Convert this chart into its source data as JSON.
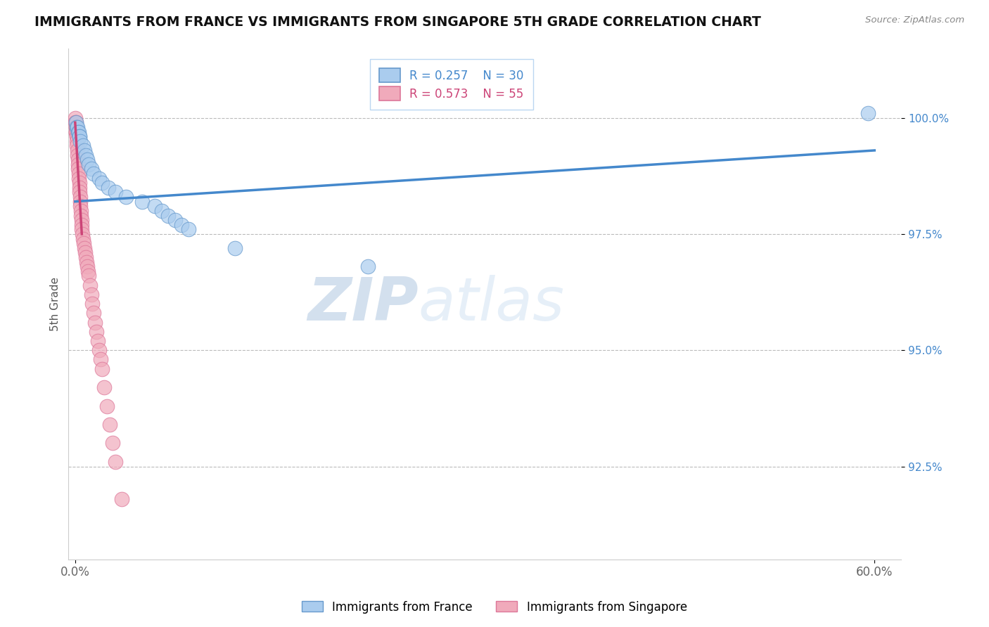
{
  "title": "IMMIGRANTS FROM FRANCE VS IMMIGRANTS FROM SINGAPORE 5TH GRADE CORRELATION CHART",
  "source_text": "Source: ZipAtlas.com",
  "xlabel_france": "Immigrants from France",
  "xlabel_singapore": "Immigrants from Singapore",
  "ylabel": "5th Grade",
  "xlim_min": -0.005,
  "xlim_max": 0.62,
  "ylim_min": 0.905,
  "ylim_max": 1.015,
  "ytick_vals": [
    0.925,
    0.95,
    0.975,
    1.0
  ],
  "ytick_labels": [
    "92.5%",
    "95.0%",
    "97.5%",
    "100.0%"
  ],
  "xtick_vals": [
    0.0,
    0.6
  ],
  "xtick_labels": [
    "0.0%",
    "60.0%"
  ],
  "france_fill": "#aaccee",
  "france_edge": "#6699cc",
  "singapore_fill": "#f0aabb",
  "singapore_edge": "#dd7799",
  "line_france_color": "#4488cc",
  "line_singapore_color": "#cc4477",
  "R_france": 0.257,
  "N_france": 30,
  "R_singapore": 0.573,
  "N_singapore": 55,
  "watermark_zip": "ZIP",
  "watermark_atlas": "atlas",
  "watermark_color_zip": "#b8cce4",
  "watermark_color_atlas": "#c8d8e8",
  "france_x": [
    0.0008,
    0.001,
    0.0015,
    0.002,
    0.0025,
    0.003,
    0.0035,
    0.004,
    0.006,
    0.007,
    0.008,
    0.009,
    0.01,
    0.012,
    0.014,
    0.018,
    0.02,
    0.025,
    0.03,
    0.038,
    0.05,
    0.06,
    0.065,
    0.07,
    0.075,
    0.08,
    0.085,
    0.12,
    0.22,
    0.595
  ],
  "france_y": [
    0.999,
    0.998,
    0.998,
    0.997,
    0.997,
    0.996,
    0.996,
    0.995,
    0.994,
    0.993,
    0.992,
    0.991,
    0.99,
    0.989,
    0.988,
    0.987,
    0.986,
    0.985,
    0.984,
    0.983,
    0.982,
    0.981,
    0.98,
    0.979,
    0.978,
    0.977,
    0.976,
    0.972,
    0.968,
    1.001
  ],
  "singapore_x": [
    0.0002,
    0.0003,
    0.0004,
    0.0005,
    0.0006,
    0.0007,
    0.0008,
    0.0009,
    0.001,
    0.0012,
    0.0014,
    0.0016,
    0.0018,
    0.002,
    0.0022,
    0.0024,
    0.0026,
    0.0028,
    0.003,
    0.0032,
    0.0034,
    0.0036,
    0.0038,
    0.004,
    0.0042,
    0.0044,
    0.0046,
    0.0048,
    0.005,
    0.0055,
    0.006,
    0.0065,
    0.007,
    0.0075,
    0.008,
    0.0085,
    0.009,
    0.0095,
    0.01,
    0.011,
    0.012,
    0.013,
    0.014,
    0.015,
    0.016,
    0.017,
    0.018,
    0.019,
    0.02,
    0.022,
    0.024,
    0.026,
    0.028,
    0.03,
    0.035
  ],
  "singapore_y": [
    1.0,
    0.999,
    0.999,
    0.998,
    0.998,
    0.997,
    0.997,
    0.996,
    0.996,
    0.995,
    0.994,
    0.993,
    0.992,
    0.991,
    0.99,
    0.989,
    0.988,
    0.987,
    0.986,
    0.985,
    0.984,
    0.983,
    0.982,
    0.981,
    0.98,
    0.979,
    0.978,
    0.977,
    0.976,
    0.975,
    0.974,
    0.973,
    0.972,
    0.971,
    0.97,
    0.969,
    0.968,
    0.967,
    0.966,
    0.964,
    0.962,
    0.96,
    0.958,
    0.956,
    0.954,
    0.952,
    0.95,
    0.948,
    0.946,
    0.942,
    0.938,
    0.934,
    0.93,
    0.926,
    0.918
  ],
  "france_line_x0": 0.0,
  "france_line_y0": 0.982,
  "france_line_x1": 0.6,
  "france_line_y1": 0.993,
  "singapore_line_x0": 0.0,
  "singapore_line_y0": 0.999,
  "singapore_line_x1": 0.005,
  "singapore_line_y1": 0.975
}
